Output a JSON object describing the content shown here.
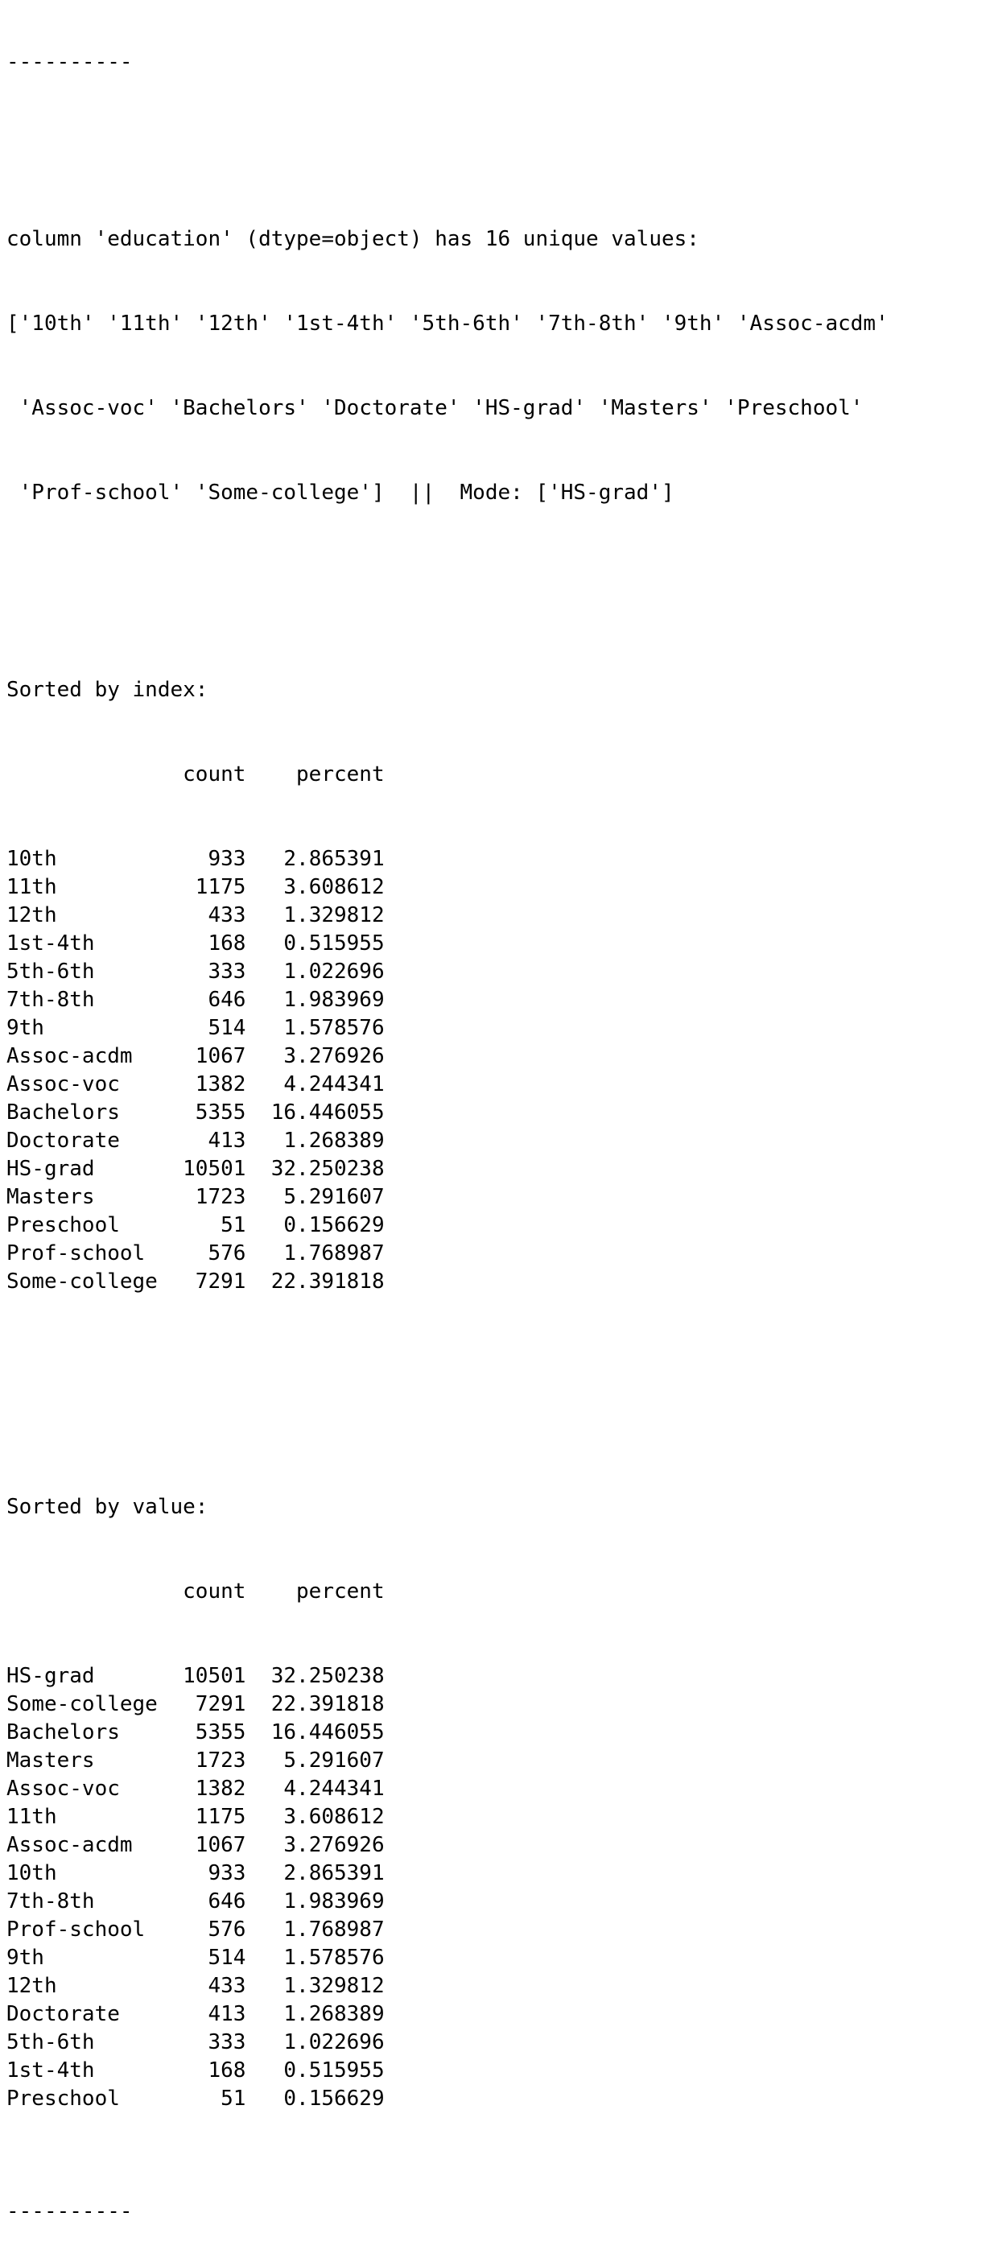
{
  "output": {
    "separator": "----------",
    "header_line_1": "column 'education' (dtype=object) has 16 unique values:",
    "header_line_2": "['10th' '11th' '12th' '1st-4th' '5th-6th' '7th-8th' '9th' 'Assoc-acdm'",
    "header_line_3": " 'Assoc-voc' 'Bachelors' 'Doctorate' 'HS-grad' 'Masters' 'Preschool'",
    "header_line_4": " 'Prof-school' 'Some-college']  ||  Mode: ['HS-grad']",
    "sorted_by_index": {
      "title": "Sorted by index:",
      "columns": [
        "count",
        "percent"
      ],
      "rows": [
        {
          "label": "10th",
          "count": "933",
          "percent": "2.865391"
        },
        {
          "label": "11th",
          "count": "1175",
          "percent": "3.608612"
        },
        {
          "label": "12th",
          "count": "433",
          "percent": "1.329812"
        },
        {
          "label": "1st-4th",
          "count": "168",
          "percent": "0.515955"
        },
        {
          "label": "5th-6th",
          "count": "333",
          "percent": "1.022696"
        },
        {
          "label": "7th-8th",
          "count": "646",
          "percent": "1.983969"
        },
        {
          "label": "9th",
          "count": "514",
          "percent": "1.578576"
        },
        {
          "label": "Assoc-acdm",
          "count": "1067",
          "percent": "3.276926"
        },
        {
          "label": "Assoc-voc",
          "count": "1382",
          "percent": "4.244341"
        },
        {
          "label": "Bachelors",
          "count": "5355",
          "percent": "16.446055"
        },
        {
          "label": "Doctorate",
          "count": "413",
          "percent": "1.268389"
        },
        {
          "label": "HS-grad",
          "count": "10501",
          "percent": "32.250238"
        },
        {
          "label": "Masters",
          "count": "1723",
          "percent": "5.291607"
        },
        {
          "label": "Preschool",
          "count": "51",
          "percent": "0.156629"
        },
        {
          "label": "Prof-school",
          "count": "576",
          "percent": "1.768987"
        },
        {
          "label": "Some-college",
          "count": "7291",
          "percent": "22.391818"
        }
      ]
    },
    "sorted_by_value": {
      "title": "Sorted by value:",
      "columns": [
        "count",
        "percent"
      ],
      "rows": [
        {
          "label": "HS-grad",
          "count": "10501",
          "percent": "32.250238"
        },
        {
          "label": "Some-college",
          "count": "7291",
          "percent": "22.391818"
        },
        {
          "label": "Bachelors",
          "count": "5355",
          "percent": "16.446055"
        },
        {
          "label": "Masters",
          "count": "1723",
          "percent": "5.291607"
        },
        {
          "label": "Assoc-voc",
          "count": "1382",
          "percent": "4.244341"
        },
        {
          "label": "11th",
          "count": "1175",
          "percent": "3.608612"
        },
        {
          "label": "Assoc-acdm",
          "count": "1067",
          "percent": "3.276926"
        },
        {
          "label": "10th",
          "count": "933",
          "percent": "2.865391"
        },
        {
          "label": "7th-8th",
          "count": "646",
          "percent": "1.983969"
        },
        {
          "label": "Prof-school",
          "count": "576",
          "percent": "1.768987"
        },
        {
          "label": "9th",
          "count": "514",
          "percent": "1.578576"
        },
        {
          "label": "12th",
          "count": "433",
          "percent": "1.329812"
        },
        {
          "label": "Doctorate",
          "count": "413",
          "percent": "1.268389"
        },
        {
          "label": "5th-6th",
          "count": "333",
          "percent": "1.022696"
        },
        {
          "label": "1st-4th",
          "count": "168",
          "percent": "0.515955"
        },
        {
          "label": "Preschool",
          "count": "51",
          "percent": "0.156629"
        }
      ]
    }
  }
}
